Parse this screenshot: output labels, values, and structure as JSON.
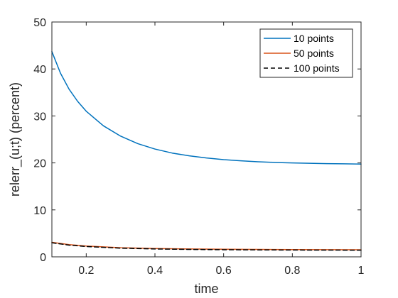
{
  "chart_data": {
    "type": "line",
    "xlabel": "time",
    "ylabel": "relerr_(u;t) (percent)",
    "xlim": [
      0.1,
      1
    ],
    "ylim": [
      0,
      50
    ],
    "xticks": [
      0.2,
      0.4,
      0.6,
      0.8,
      1
    ],
    "xtick_labels": [
      "0.2",
      "0.4",
      "0.6",
      "0.8",
      "1"
    ],
    "yticks": [
      0,
      10,
      20,
      30,
      40,
      50
    ],
    "ytick_labels": [
      "0",
      "10",
      "20",
      "30",
      "40",
      "50"
    ],
    "grid": false,
    "legend_position": "top-right",
    "series": [
      {
        "name": "10 points",
        "color": "#0072BD",
        "style": "solid",
        "x": [
          0.1,
          0.125,
          0.15,
          0.175,
          0.2,
          0.25,
          0.3,
          0.35,
          0.4,
          0.45,
          0.5,
          0.55,
          0.6,
          0.65,
          0.7,
          0.75,
          0.8,
          0.85,
          0.9,
          0.95,
          1.0
        ],
        "y": [
          43.7,
          39.1,
          35.7,
          33.1,
          31.0,
          27.9,
          25.7,
          24.1,
          22.95,
          22.1,
          21.5,
          21.05,
          20.7,
          20.45,
          20.25,
          20.1,
          20.0,
          19.92,
          19.85,
          19.8,
          19.75
        ]
      },
      {
        "name": "50 points",
        "color": "#D95319",
        "style": "solid",
        "x": [
          0.1,
          0.15,
          0.2,
          0.3,
          0.4,
          0.5,
          0.6,
          0.7,
          0.8,
          0.9,
          1.0
        ],
        "y": [
          3.1,
          2.6,
          2.3,
          1.95,
          1.78,
          1.68,
          1.62,
          1.58,
          1.55,
          1.53,
          1.52
        ]
      },
      {
        "name": "100 points",
        "color": "#000000",
        "style": "dashed",
        "x": [
          0.1,
          0.15,
          0.2,
          0.3,
          0.4,
          0.5,
          0.6,
          0.7,
          0.8,
          0.9,
          1.0
        ],
        "y": [
          3.0,
          2.5,
          2.2,
          1.85,
          1.68,
          1.58,
          1.52,
          1.48,
          1.45,
          1.43,
          1.42
        ]
      }
    ]
  }
}
